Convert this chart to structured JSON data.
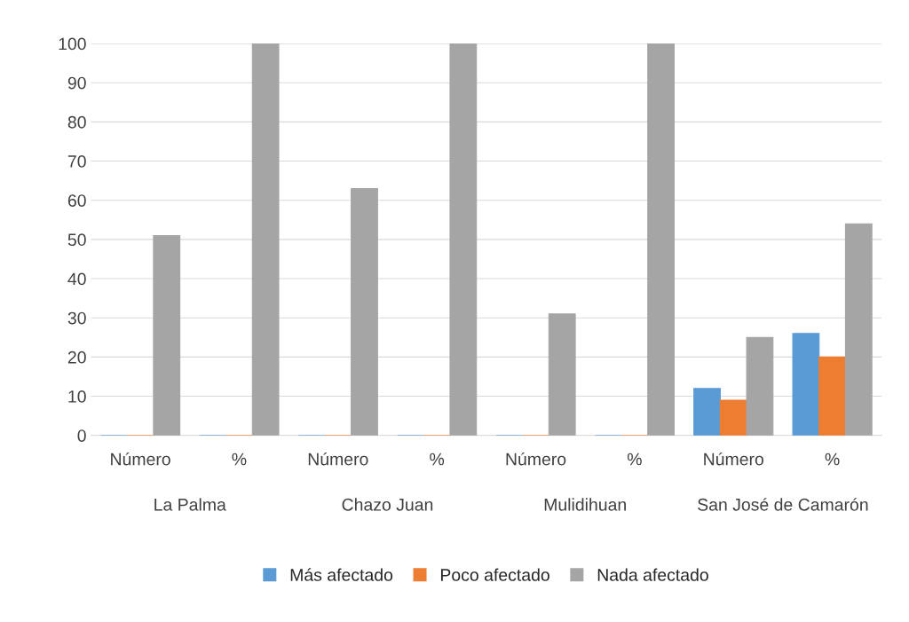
{
  "chart_data": {
    "type": "bar",
    "categories": [
      "Número",
      "%",
      "Número",
      "%",
      "Número",
      "%",
      "Número",
      "%"
    ],
    "series": [
      {
        "name": "Más afectado",
        "color": "#5b9bd5",
        "values": [
          0,
          0,
          0,
          0,
          0,
          0,
          12,
          26
        ]
      },
      {
        "name": "Poco afectado",
        "color": "#ed7d31",
        "values": [
          0,
          0,
          0,
          0,
          0,
          0,
          9,
          20
        ]
      },
      {
        "name": "Nada afectado",
        "color": "#a5a5a5",
        "values": [
          51,
          100,
          63,
          100,
          31,
          100,
          25,
          54
        ]
      }
    ],
    "annotations": [
      "La Palma",
      "Chazo Juan",
      "Mulidihuan",
      "San José de Camarón"
    ],
    "ylim": [
      0,
      100
    ],
    "yticks": [
      0,
      10,
      20,
      30,
      40,
      50,
      60,
      70,
      80,
      90,
      100
    ],
    "grid": "y",
    "legend": "bottom"
  }
}
